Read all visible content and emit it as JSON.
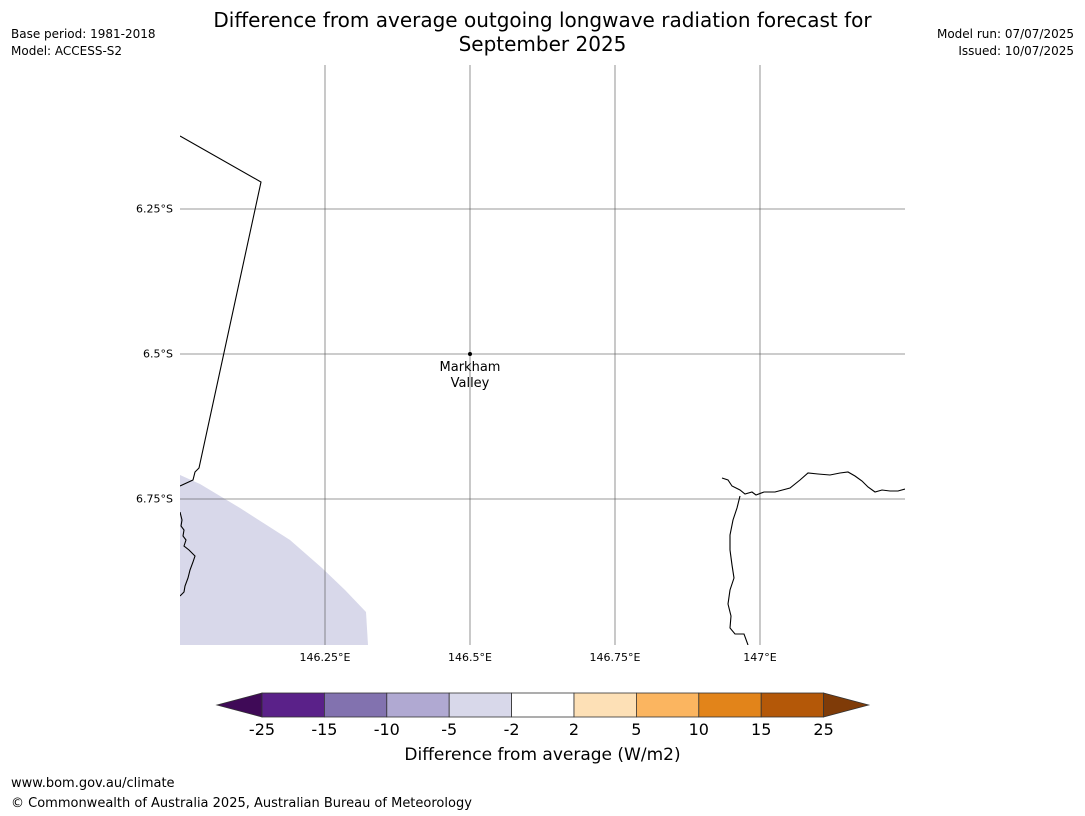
{
  "header": {
    "title_line1": "Difference from average outgoing longwave radiation forecast for",
    "title_line2": "September 2025",
    "base_period": "Base period: 1981-2018",
    "model": "Model: ACCESS-S2",
    "model_run": "Model run: 07/07/2025",
    "issued": "Issued: 10/07/2025"
  },
  "map": {
    "lat_labels": [
      "6.25°S",
      "6.5°S",
      "6.75°S"
    ],
    "lon_labels": [
      "146.25°E",
      "146.5°E",
      "146.75°E",
      "147°E"
    ],
    "place": {
      "name_line1": "Markham",
      "name_line2": "Valley"
    },
    "shading_color": "#d8d8ea"
  },
  "colorbar": {
    "tick_labels": [
      "-25",
      "-15",
      "-10",
      "-5",
      "-2",
      "2",
      "5",
      "10",
      "15",
      "25"
    ],
    "colors": [
      "#3f0a57",
      "#5a2189",
      "#8272af",
      "#b0a9d2",
      "#d8d8ea",
      "#ffffff",
      "#fde0b6",
      "#fbb560",
      "#e2841a",
      "#b45808",
      "#7f3b08"
    ],
    "title": "Difference from average (W/m2)"
  },
  "footer": {
    "url": "www.bom.gov.au/climate",
    "copyright": "© Commonwealth of Australia 2025, Australian Bureau of Meteorology"
  }
}
